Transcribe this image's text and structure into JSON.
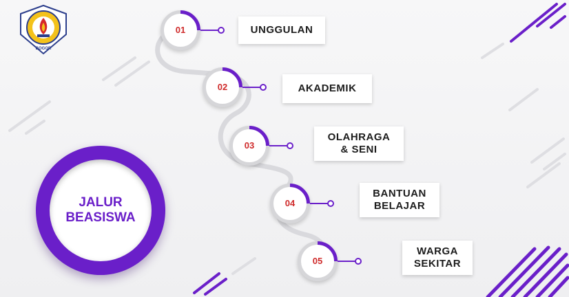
{
  "logo": {
    "ring_text": "INSTITUT BISNIS DAN INFORMATIKA KESATUAN",
    "bottom_text": "BOGOR"
  },
  "title": {
    "line1": "JALUR",
    "line2": "BEASISWA"
  },
  "steps": [
    {
      "number": "01",
      "label_lines": [
        "UNGGULAN"
      ]
    },
    {
      "number": "02",
      "label_lines": [
        "AKADEMIK"
      ]
    },
    {
      "number": "03",
      "label_lines": [
        "OLAHRAGA",
        "& SENI"
      ]
    },
    {
      "number": "04",
      "label_lines": [
        "BANTUAN",
        "BELAJAR"
      ]
    },
    {
      "number": "05",
      "label_lines": [
        "WARGA",
        "SEKITAR"
      ]
    }
  ],
  "colors": {
    "accent": "#6a1fc9",
    "number": "#cf2a2a",
    "ring": "#d6d6d9"
  }
}
